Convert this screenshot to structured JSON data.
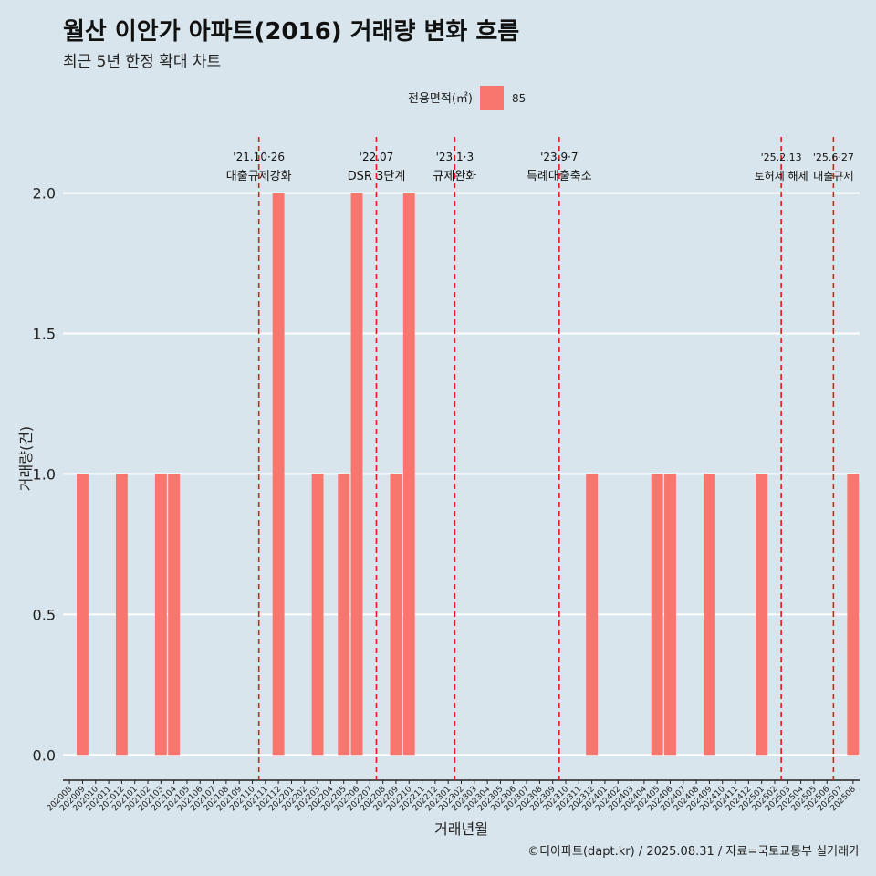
{
  "title": "월산 이안가 아파트(2016) 거래량 변화 흐름",
  "subtitle": "최근 5년 한정 확대 차트",
  "caption": "©디아파트(dapt.kr) / 2025.08.31 / 자료=국토교통부 실거래가",
  "colors": {
    "bar": "#f8766d",
    "background": "#d8e5ec",
    "grid": "#ffffff",
    "event_line": "#e31a1c"
  },
  "chart_data": {
    "type": "bar",
    "xlabel": "거래년월",
    "ylabel": "거래량(건)",
    "legend": {
      "title": "전용면적(㎡)",
      "placement": "top",
      "entries": [
        "85"
      ]
    },
    "grid": true,
    "ylim": [
      -0.09,
      2.2
    ],
    "yticks": [
      0.0,
      0.5,
      1.0,
      1.5,
      2.0
    ],
    "ytick_labels": [
      "0.0",
      "0.5",
      "1.0",
      "1.5",
      "2.0"
    ],
    "categories": [
      "202008",
      "202009",
      "202010",
      "202011",
      "202012",
      "202101",
      "202102",
      "202103",
      "202104",
      "202105",
      "202106",
      "202107",
      "202108",
      "202109",
      "202110",
      "202111",
      "202112",
      "202201",
      "202202",
      "202203",
      "202204",
      "202205",
      "202206",
      "202207",
      "202208",
      "202209",
      "202210",
      "202211",
      "202212",
      "202301",
      "202302",
      "202303",
      "202304",
      "202305",
      "202306",
      "202307",
      "202308",
      "202309",
      "202310",
      "202311",
      "202312",
      "202401",
      "202402",
      "202403",
      "202404",
      "202405",
      "202406",
      "202407",
      "202408",
      "202409",
      "202410",
      "202411",
      "202412",
      "202501",
      "202502",
      "202503",
      "202504",
      "202505",
      "202506",
      "202507",
      "202508"
    ],
    "series": [
      {
        "name": "85",
        "values": [
          0,
          1,
          0,
          0,
          1,
          0,
          0,
          1,
          1,
          0,
          0,
          0,
          0,
          0,
          0,
          0,
          2,
          0,
          0,
          1,
          0,
          1,
          2,
          0,
          0,
          1,
          2,
          0,
          0,
          0,
          0,
          0,
          0,
          0,
          0,
          0,
          0,
          0,
          0,
          0,
          1,
          0,
          0,
          0,
          0,
          1,
          1,
          0,
          0,
          1,
          0,
          0,
          0,
          1,
          0,
          0,
          0,
          0,
          0,
          0,
          1
        ]
      }
    ],
    "events": [
      {
        "x": 14.5,
        "date": "'21.10·26",
        "label": "대출규제강화"
      },
      {
        "x": 23.5,
        "date": "'22.07",
        "label": "DSR 3단계"
      },
      {
        "x": 29.5,
        "date": "'23.1·3",
        "label": "규제완화"
      },
      {
        "x": 37.5,
        "date": "'23.9·7",
        "label": "특례대출축소"
      },
      {
        "x": 54.5,
        "date": "'25.2.13",
        "label": "토허제 해제"
      },
      {
        "x": 58.5,
        "date": "'25.6·27",
        "label": "대출규제"
      }
    ]
  }
}
